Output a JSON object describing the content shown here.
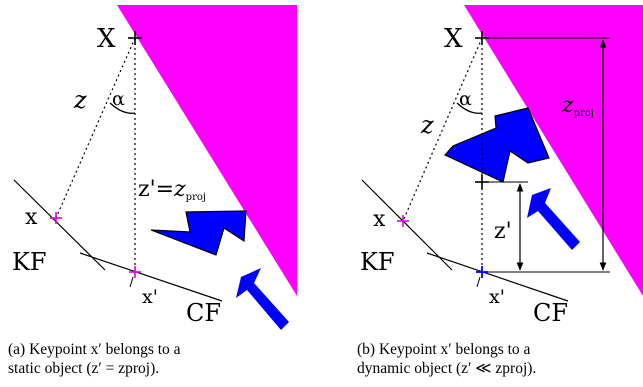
{
  "colors": {
    "wall": "#ff00ff",
    "object": "#0000ff",
    "keypoint": "#e000e0",
    "keypoint_dynamic": "#0000ff"
  },
  "panel_a": {
    "label_X": "X",
    "label_z": "z",
    "label_alpha": "α",
    "label_zprime": "z'",
    "label_equals": "=",
    "label_zproj_base": "z",
    "label_zproj_sub": "proj",
    "label_x": "x",
    "label_KF": "KF",
    "label_xprime": "x'",
    "label_CF": "CF",
    "caption_line1": "(a)   Keypoint x′ belongs to a",
    "caption_line2": "static object (z′ = zproj)."
  },
  "panel_b": {
    "label_X": "X",
    "label_z": "z",
    "label_alpha": "α",
    "label_zproj_base": "z",
    "label_zproj_sub": "proj",
    "label_zprime": "z'",
    "label_x": "x",
    "label_KF": "KF",
    "label_xprime": "x'",
    "label_CF": "CF",
    "caption_line1": "(b)   Keypoint x′ belongs to a",
    "caption_line2": "dynamic object (z′ ≪ zproj)."
  }
}
